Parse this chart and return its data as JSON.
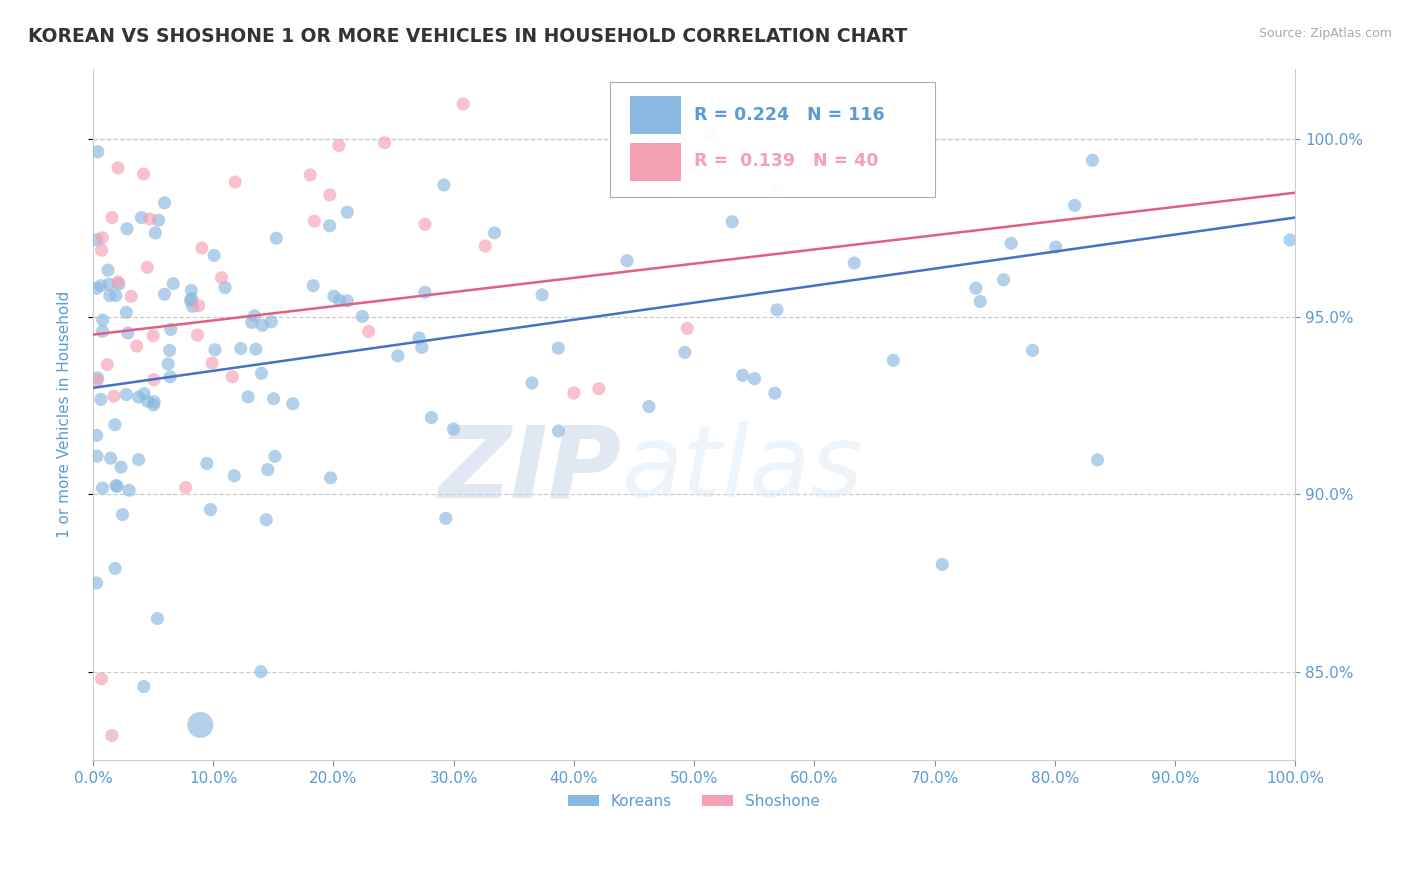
{
  "title": "KOREAN VS SHOSHONE 1 OR MORE VEHICLES IN HOUSEHOLD CORRELATION CHART",
  "source": "Source: ZipAtlas.com",
  "ylabel": "1 or more Vehicles in Household",
  "xlim": [
    0,
    100
  ],
  "ylim": [
    82.5,
    102.0
  ],
  "yticks": [
    85.0,
    90.0,
    95.0,
    100.0
  ],
  "xticks": [
    0,
    10,
    20,
    30,
    40,
    50,
    60,
    70,
    80,
    90,
    100
  ],
  "korean_R": 0.224,
  "korean_N": 116,
  "shoshone_R": 0.139,
  "shoshone_N": 40,
  "korean_color": "#89b8e0",
  "shoshone_color": "#f4a0b5",
  "korean_line_color": "#4472c4",
  "shoshone_line_color": "#e06080",
  "legend_label_korean": "Koreans",
  "legend_label_shoshone": "Shoshone",
  "watermark_zip": "ZIP",
  "watermark_atlas": "atlas",
  "background_color": "#ffffff",
  "grid_color": "#cccccc",
  "axis_color": "#5b9bd5",
  "korean_line_x0": 0,
  "korean_line_y0": 93.0,
  "korean_line_x1": 100,
  "korean_line_y1": 97.8,
  "shoshone_line_x0": 0,
  "shoshone_line_y0": 94.5,
  "shoshone_line_x1": 100,
  "shoshone_line_y1": 98.5
}
